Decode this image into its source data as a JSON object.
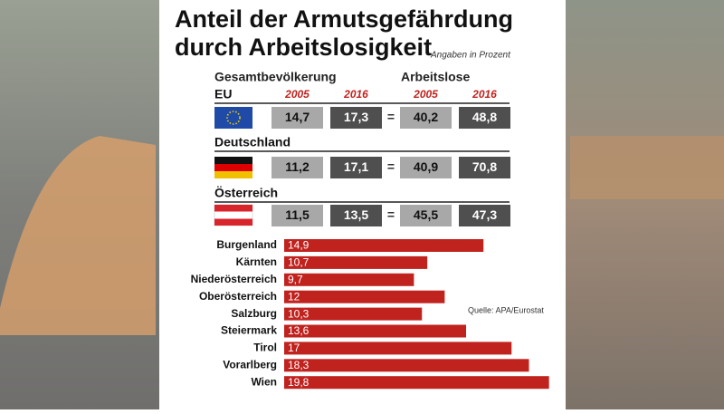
{
  "title_lines": [
    "Anteil der Armutsgefährdung",
    "durch Arbeitslosigkeit"
  ],
  "subtitle": "Angaben in Prozent",
  "table": {
    "groups": [
      "Gesamtbevölkerung",
      "Arbeitslose"
    ],
    "years": [
      "2005",
      "2016",
      "2005",
      "2016"
    ],
    "separator": "=",
    "rows": [
      {
        "label": "EU",
        "values": [
          "14,7",
          "17,3",
          "40,2",
          "48,8"
        ]
      },
      {
        "label": "Deutschland",
        "values": [
          "11,2",
          "17,1",
          "40,9",
          "70,8"
        ]
      },
      {
        "label": "Österreich",
        "values": [
          "11,5",
          "13,5",
          "45,5",
          "47,3"
        ]
      }
    ]
  },
  "chart_data": {
    "type": "bar",
    "orientation": "horizontal",
    "categories": [
      "Burgenland",
      "Kärnten",
      "Niederösterreich",
      "Oberösterreich",
      "Salzburg",
      "Steiermark",
      "Tirol",
      "Vorarlberg",
      "Wien"
    ],
    "values": [
      14.9,
      10.7,
      9.7,
      12,
      10.3,
      13.6,
      17,
      18.3,
      19.8
    ],
    "value_labels": [
      "14,9",
      "10,7",
      "9,7",
      "12",
      "10,3",
      "13,6",
      "17",
      "18,3",
      "19,8"
    ],
    "color": "#c0221e"
  },
  "source": "Quelle: APA/Eurostat"
}
